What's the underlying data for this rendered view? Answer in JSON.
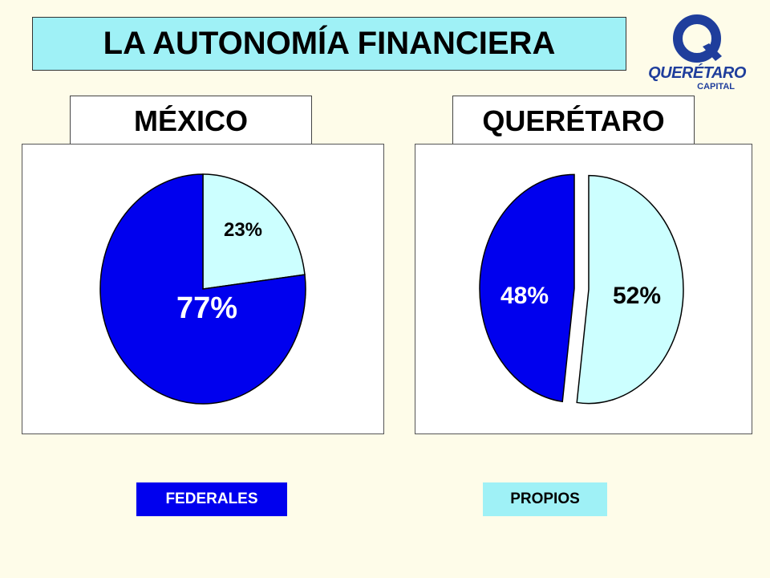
{
  "title": "LA AUTONOMÍA FINANCIERA",
  "logo": {
    "line1": "QUERÉTARO",
    "line2": "CAPITAL",
    "letter": "Q"
  },
  "colors": {
    "federales": "#0000ee",
    "propios": "#ccffff",
    "title_bg": "#9ff1f6",
    "background": "#fefce9"
  },
  "legend": [
    {
      "label": "FEDERALES",
      "color": "#0000ee",
      "text_color": "#ffffff"
    },
    {
      "label": "PROPIOS",
      "color": "#9ff1f6",
      "text_color": "#000000"
    }
  ],
  "chart_data": [
    {
      "type": "pie",
      "title": "MÉXICO",
      "slices": [
        {
          "name": "PROPIOS",
          "value": 23,
          "label": "23%"
        },
        {
          "name": "FEDERALES",
          "value": 77,
          "label": "77%"
        }
      ]
    },
    {
      "type": "pie",
      "title": "QUERÉTARO",
      "slices": [
        {
          "name": "PROPIOS",
          "value": 52,
          "label": "52%"
        },
        {
          "name": "FEDERALES",
          "value": 48,
          "label": "48%"
        }
      ]
    }
  ]
}
